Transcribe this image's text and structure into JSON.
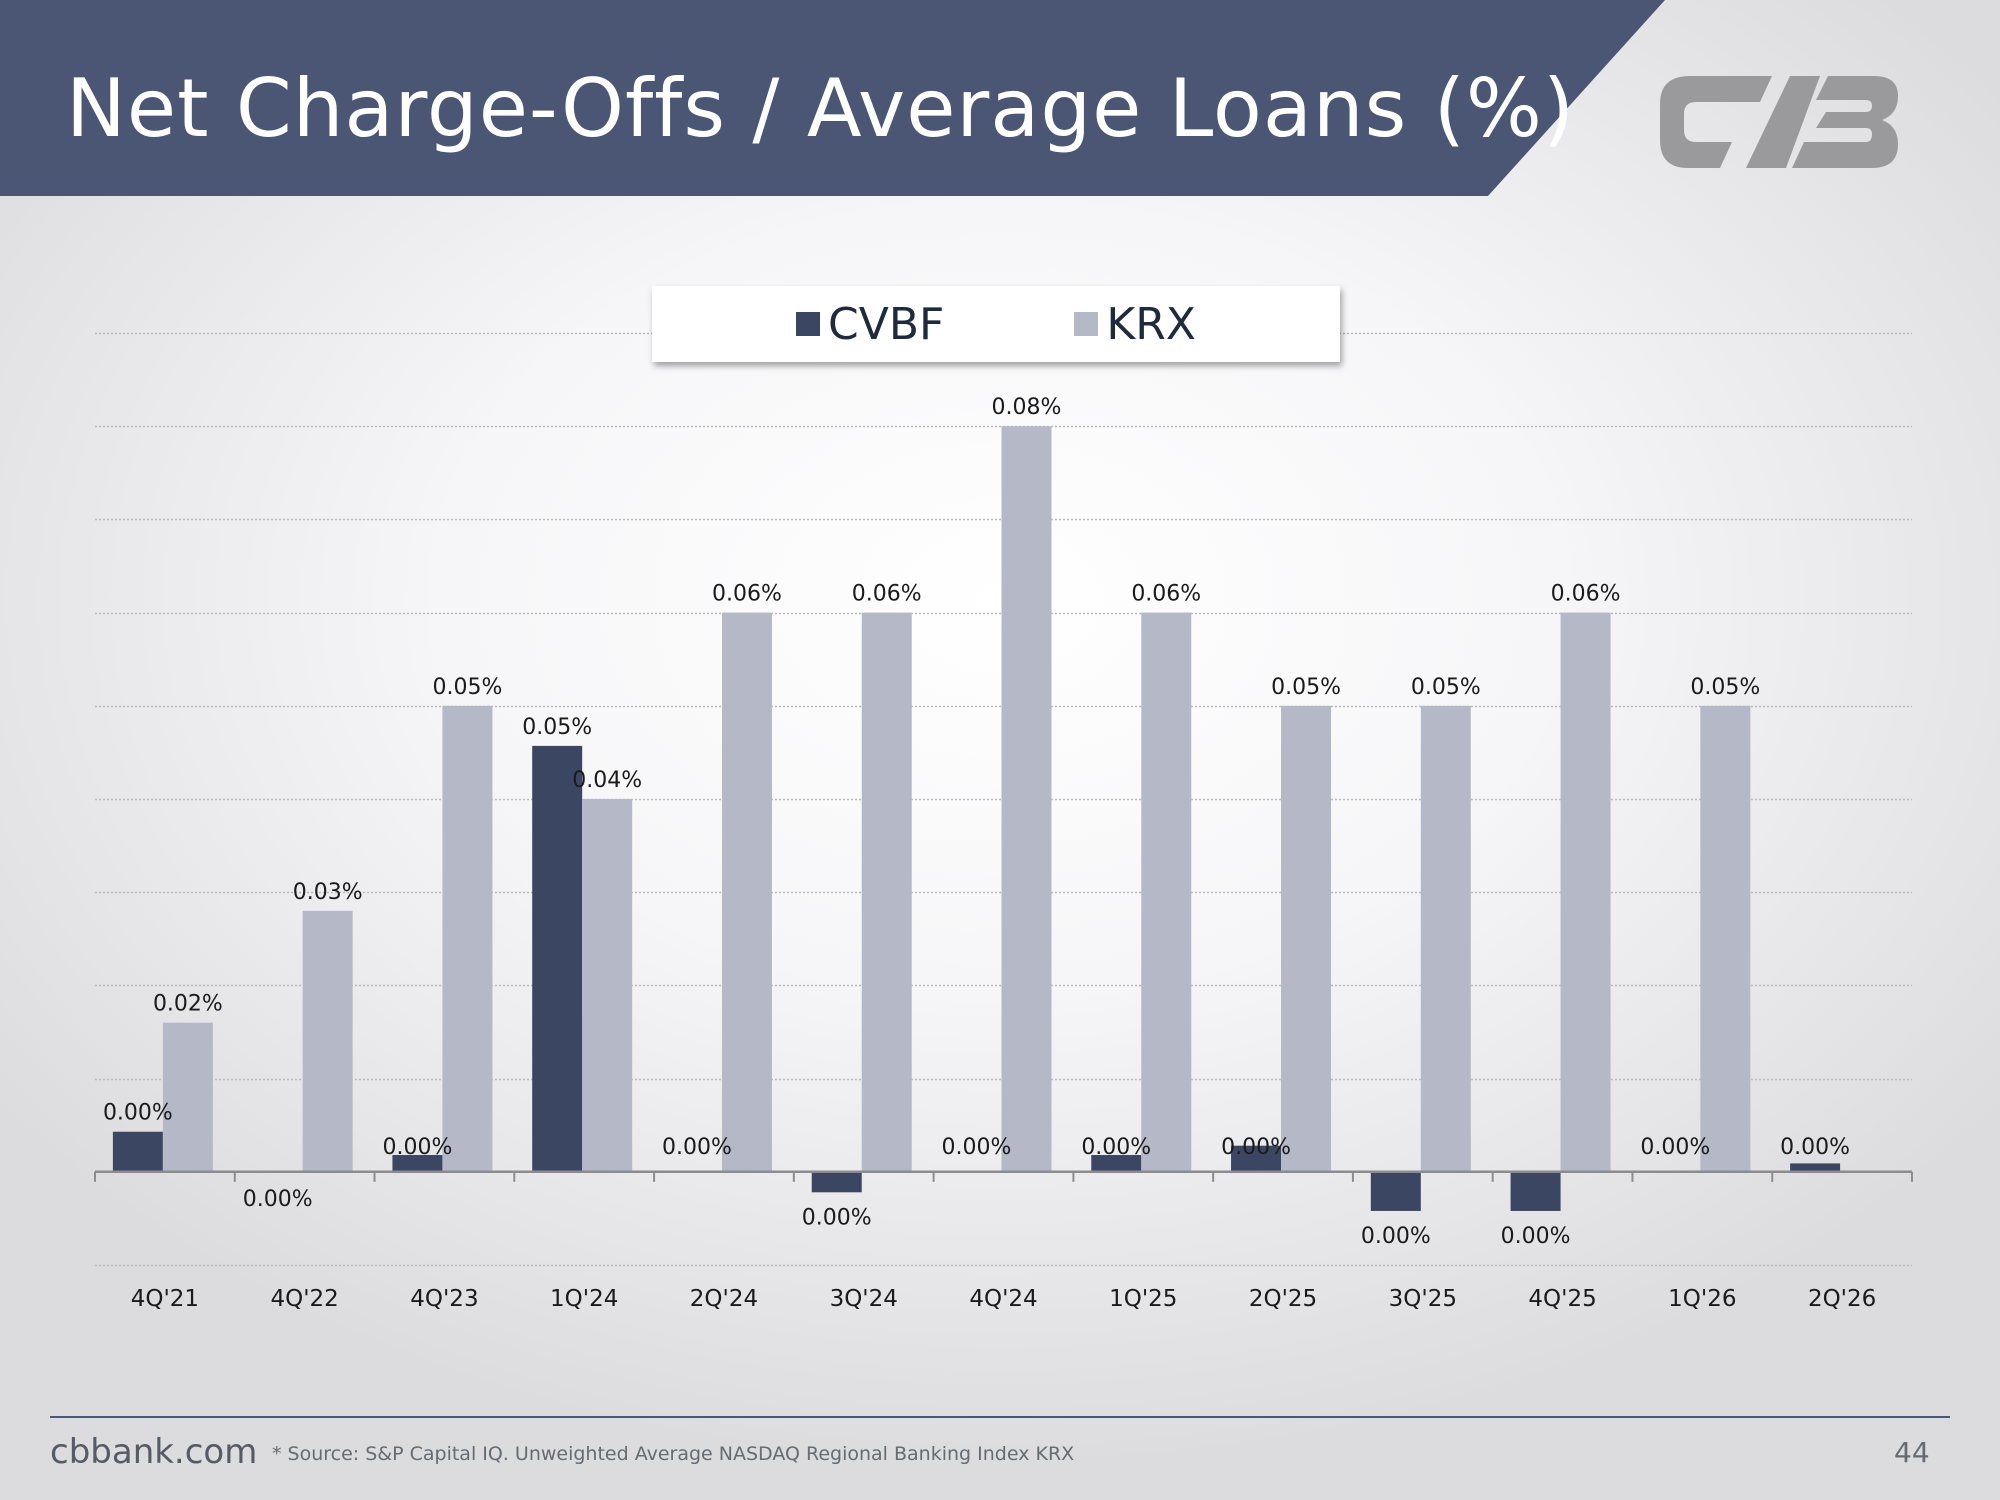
{
  "slide": {
    "title": "Net Charge-Offs / Average Loans (%)",
    "logo_icon": "cvb-logo-icon",
    "header_color": "#4a5673",
    "logo_color": "#9a9a9c",
    "footer": {
      "site": "cbbank.com",
      "source": "* Source: S&P Capital IQ. Unweighted Average NASDAQ Regional Banking Index KRX",
      "page_number": "44"
    }
  },
  "chart_data": {
    "type": "bar",
    "categories": [
      "4Q'21",
      "4Q'22",
      "4Q'23",
      "1Q'24",
      "2Q'24",
      "3Q'24",
      "4Q'24",
      "1Q'25",
      "2Q'25",
      "3Q'25",
      "4Q'25",
      "1Q'26",
      "2Q'26"
    ],
    "series": [
      {
        "name": "CVBF",
        "color": "#3b4762",
        "values": [
          0.0043,
          0.0,
          0.0018,
          0.0457,
          0.0,
          -0.0022,
          0.0,
          0.0018,
          0.0028,
          -0.0042,
          -0.0042,
          0.0,
          0.0009
        ],
        "labels": [
          "0.00%",
          "0.00%",
          "0.00%",
          "0.05%",
          "0.00%",
          "0.00%",
          "0.00%",
          "0.00%",
          "0.00%",
          "0.00%",
          "0.00%",
          "0.00%",
          "0.00%"
        ]
      },
      {
        "name": "KRX",
        "color": "#b5b8c7",
        "values": [
          0.016,
          0.028,
          0.05,
          0.04,
          0.06,
          0.06,
          0.08,
          0.06,
          0.05,
          0.05,
          0.06,
          0.05,
          null
        ],
        "labels": [
          "0.02%",
          "0.03%",
          "0.05%",
          "0.04%",
          "0.06%",
          "0.06%",
          "0.08%",
          "0.06%",
          "0.05%",
          "0.05%",
          "0.06%",
          "0.05%",
          ""
        ]
      }
    ],
    "ylim": [
      -0.01,
      0.09
    ],
    "grid": true,
    "legend_position": "top-center",
    "xlabel": "",
    "ylabel": ""
  }
}
